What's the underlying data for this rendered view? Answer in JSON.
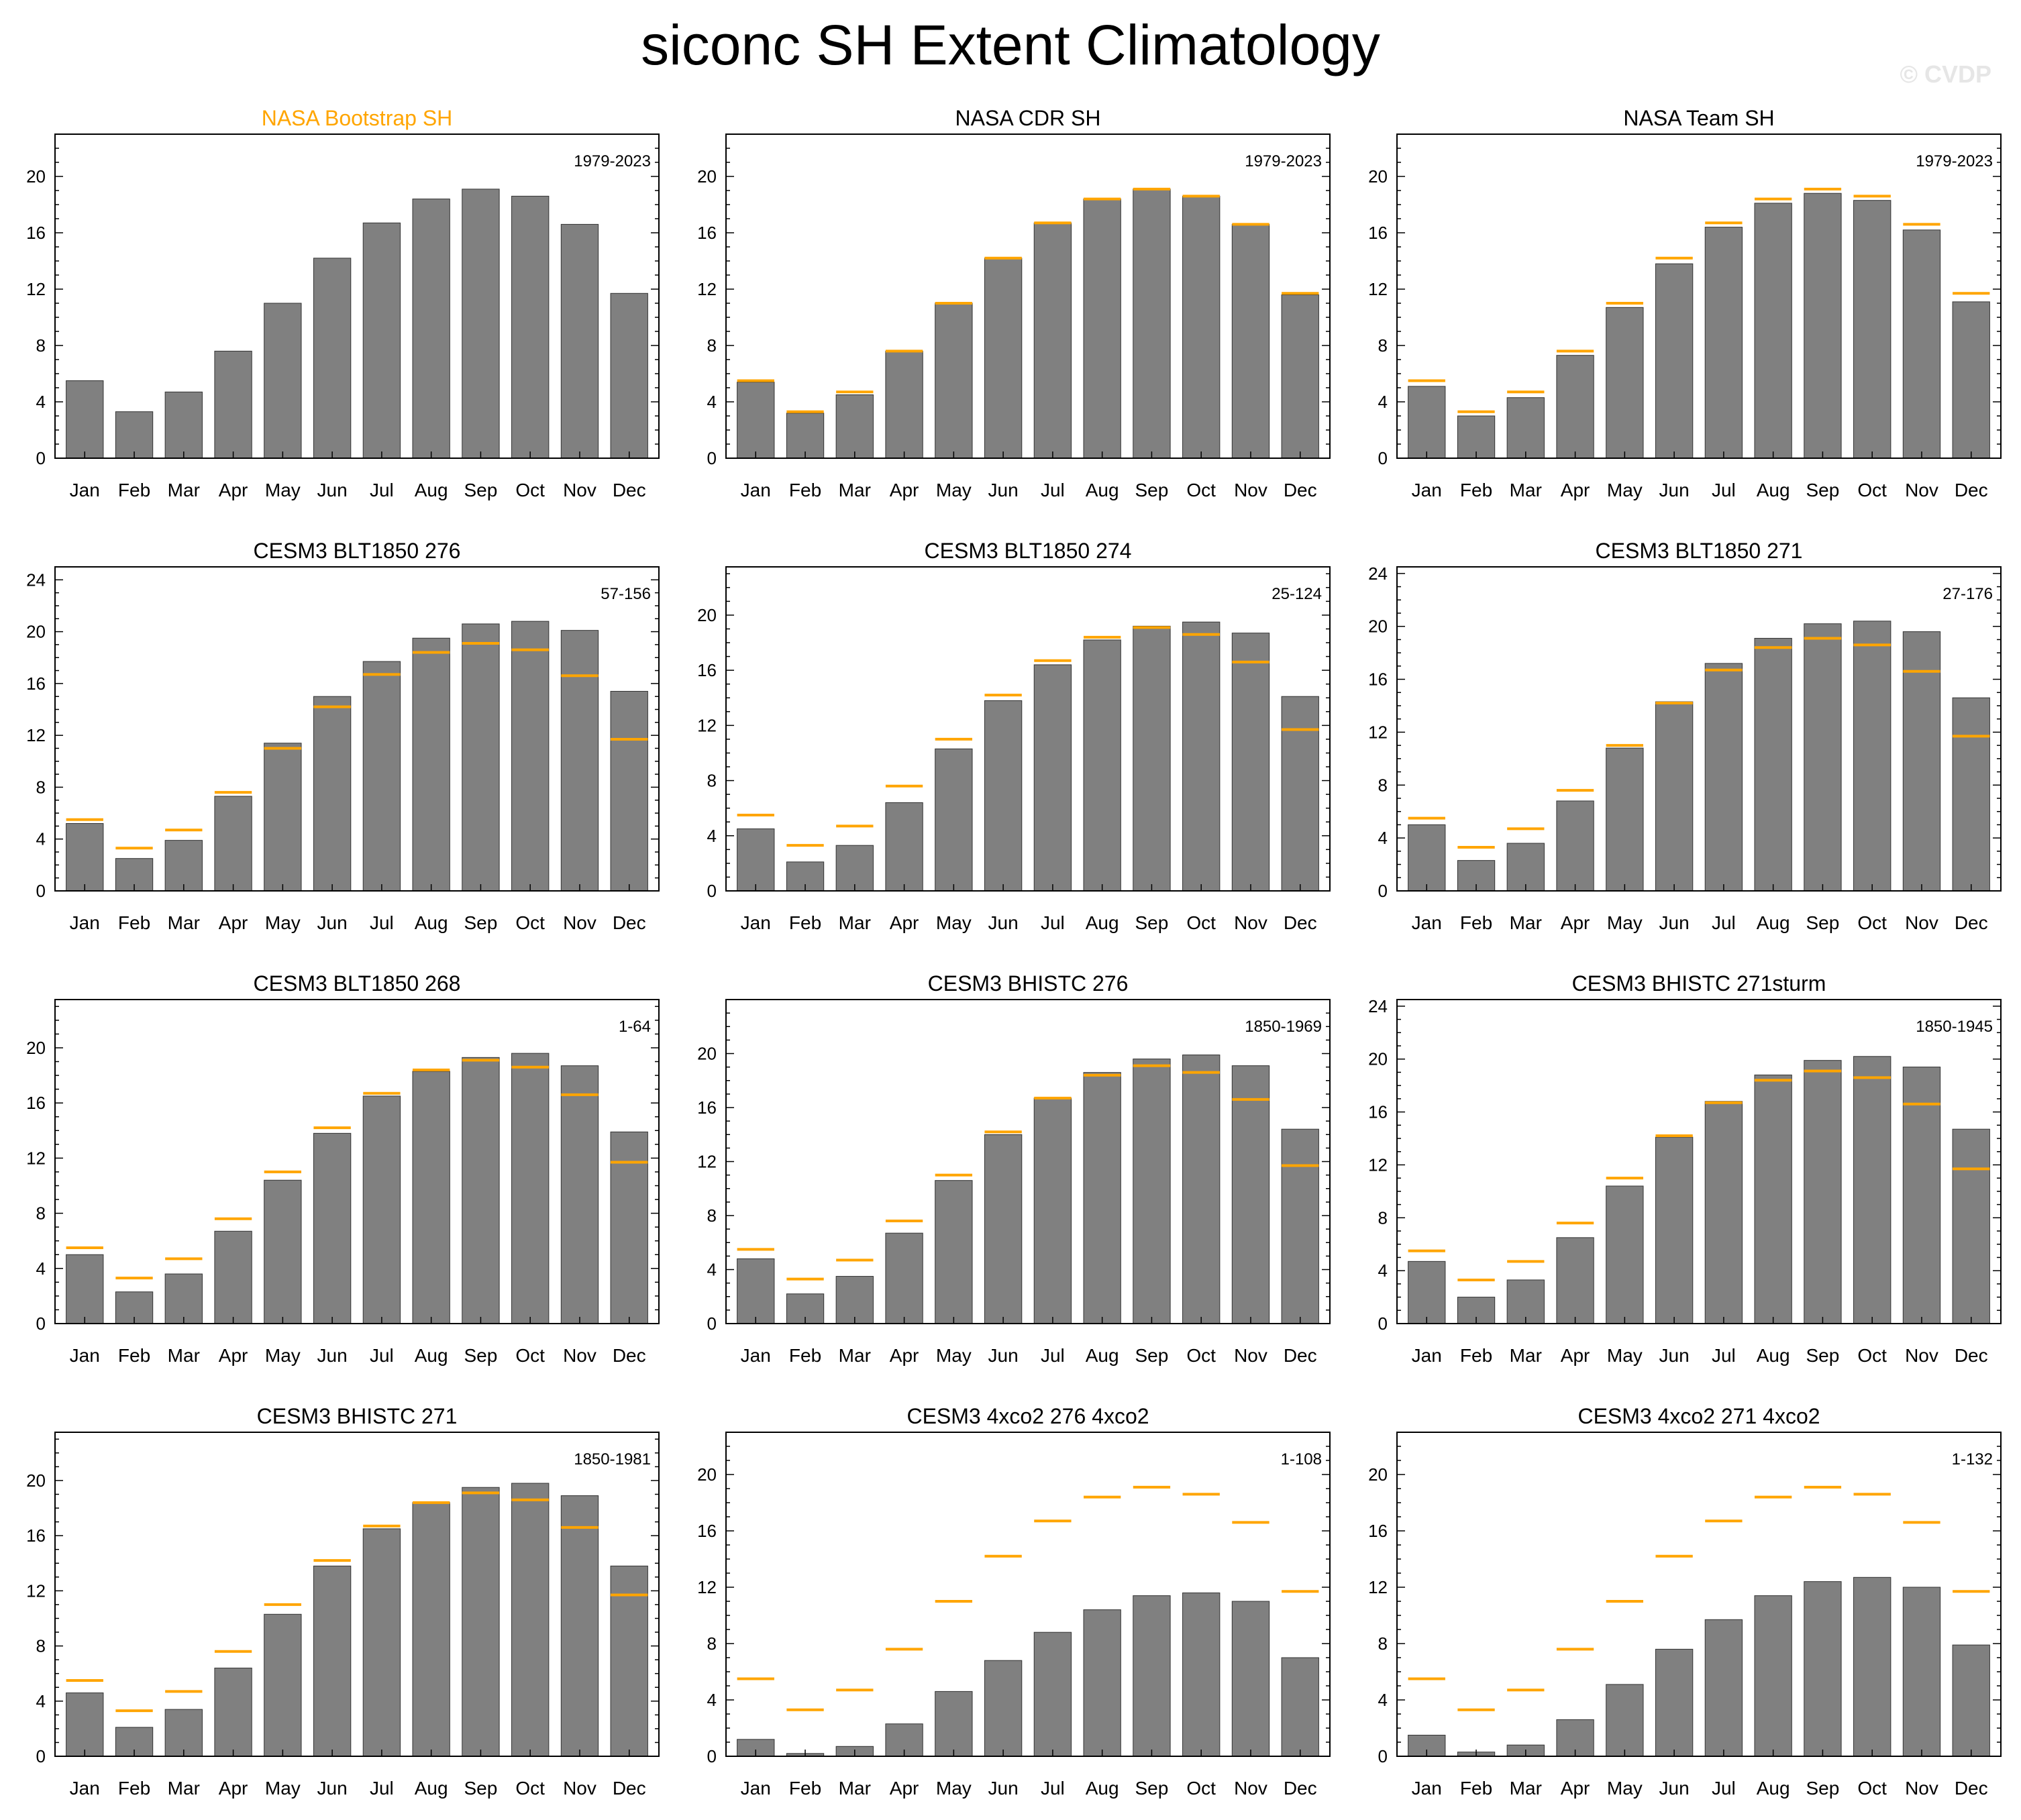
{
  "title": "siconc SH Extent Climatology",
  "watermark": "© CVDP",
  "colors": {
    "bar": "#808080",
    "reference": "#ffa500",
    "axis": "#000000",
    "highlight_title": "#ffa500"
  },
  "chart_data": [
    {
      "type": "bar",
      "title": "NASA Bootstrap SH",
      "title_highlight": true,
      "period": "1979-2023",
      "categories": [
        "Jan",
        "Feb",
        "Mar",
        "Apr",
        "May",
        "Jun",
        "Jul",
        "Aug",
        "Sep",
        "Oct",
        "Nov",
        "Dec"
      ],
      "values": [
        5.5,
        3.3,
        4.7,
        7.6,
        11.0,
        14.2,
        16.7,
        18.4,
        19.1,
        18.6,
        16.6,
        11.7
      ],
      "reference": null,
      "ylim": [
        0,
        23
      ],
      "yticks": [
        0,
        4,
        8,
        12,
        16,
        20
      ]
    },
    {
      "type": "bar",
      "title": "NASA CDR SH",
      "title_highlight": false,
      "period": "1979-2023",
      "categories": [
        "Jan",
        "Feb",
        "Mar",
        "Apr",
        "May",
        "Jun",
        "Jul",
        "Aug",
        "Sep",
        "Oct",
        "Nov",
        "Dec"
      ],
      "values": [
        5.4,
        3.2,
        4.5,
        7.6,
        11.0,
        14.2,
        16.7,
        18.4,
        19.1,
        18.6,
        16.6,
        11.6
      ],
      "reference": [
        5.5,
        3.3,
        4.7,
        7.6,
        11.0,
        14.2,
        16.7,
        18.4,
        19.1,
        18.6,
        16.6,
        11.7
      ],
      "ylim": [
        0,
        23
      ],
      "yticks": [
        0,
        4,
        8,
        12,
        16,
        20
      ]
    },
    {
      "type": "bar",
      "title": "NASA Team SH",
      "title_highlight": false,
      "period": "1979-2023",
      "categories": [
        "Jan",
        "Feb",
        "Mar",
        "Apr",
        "May",
        "Jun",
        "Jul",
        "Aug",
        "Sep",
        "Oct",
        "Nov",
        "Dec"
      ],
      "values": [
        5.1,
        3.0,
        4.3,
        7.3,
        10.7,
        13.8,
        16.4,
        18.1,
        18.8,
        18.3,
        16.2,
        11.1
      ],
      "reference": [
        5.5,
        3.3,
        4.7,
        7.6,
        11.0,
        14.2,
        16.7,
        18.4,
        19.1,
        18.6,
        16.6,
        11.7
      ],
      "ylim": [
        0,
        23
      ],
      "yticks": [
        0,
        4,
        8,
        12,
        16,
        20
      ]
    },
    {
      "type": "bar",
      "title": "CESM3 BLT1850 276",
      "title_highlight": false,
      "period": "57-156",
      "categories": [
        "Jan",
        "Feb",
        "Mar",
        "Apr",
        "May",
        "Jun",
        "Jul",
        "Aug",
        "Sep",
        "Oct",
        "Nov",
        "Dec"
      ],
      "values": [
        5.2,
        2.5,
        3.9,
        7.3,
        11.4,
        15.0,
        17.7,
        19.5,
        20.6,
        20.8,
        20.1,
        15.4
      ],
      "reference": [
        5.5,
        3.3,
        4.7,
        7.6,
        11.0,
        14.2,
        16.7,
        18.4,
        19.1,
        18.6,
        16.6,
        11.7
      ],
      "ylim": [
        0,
        25
      ],
      "yticks": [
        0,
        4,
        8,
        12,
        16,
        20,
        24
      ]
    },
    {
      "type": "bar",
      "title": "CESM3 BLT1850 274",
      "title_highlight": false,
      "period": "25-124",
      "categories": [
        "Jan",
        "Feb",
        "Mar",
        "Apr",
        "May",
        "Jun",
        "Jul",
        "Aug",
        "Sep",
        "Oct",
        "Nov",
        "Dec"
      ],
      "values": [
        4.5,
        2.1,
        3.3,
        6.4,
        10.3,
        13.8,
        16.4,
        18.2,
        19.2,
        19.5,
        18.7,
        14.1
      ],
      "reference": [
        5.5,
        3.3,
        4.7,
        7.6,
        11.0,
        14.2,
        16.7,
        18.4,
        19.1,
        18.6,
        16.6,
        11.7
      ],
      "ylim": [
        0,
        23.5
      ],
      "yticks": [
        0,
        4,
        8,
        12,
        16,
        20
      ]
    },
    {
      "type": "bar",
      "title": "CESM3 BLT1850 271",
      "title_highlight": false,
      "period": "27-176",
      "categories": [
        "Jan",
        "Feb",
        "Mar",
        "Apr",
        "May",
        "Jun",
        "Jul",
        "Aug",
        "Sep",
        "Oct",
        "Nov",
        "Dec"
      ],
      "values": [
        5.0,
        2.3,
        3.6,
        6.8,
        10.8,
        14.3,
        17.2,
        19.1,
        20.2,
        20.4,
        19.6,
        14.6
      ],
      "reference": [
        5.5,
        3.3,
        4.7,
        7.6,
        11.0,
        14.2,
        16.7,
        18.4,
        19.1,
        18.6,
        16.6,
        11.7
      ],
      "ylim": [
        0,
        24.5
      ],
      "yticks": [
        0,
        4,
        8,
        12,
        16,
        20,
        24
      ]
    },
    {
      "type": "bar",
      "title": "CESM3 BLT1850 268",
      "title_highlight": false,
      "period": "1-64",
      "categories": [
        "Jan",
        "Feb",
        "Mar",
        "Apr",
        "May",
        "Jun",
        "Jul",
        "Aug",
        "Sep",
        "Oct",
        "Nov",
        "Dec"
      ],
      "values": [
        5.0,
        2.3,
        3.6,
        6.7,
        10.4,
        13.8,
        16.5,
        18.3,
        19.3,
        19.6,
        18.7,
        13.9
      ],
      "reference": [
        5.5,
        3.3,
        4.7,
        7.6,
        11.0,
        14.2,
        16.7,
        18.4,
        19.1,
        18.6,
        16.6,
        11.7
      ],
      "ylim": [
        0,
        23.5
      ],
      "yticks": [
        0,
        4,
        8,
        12,
        16,
        20
      ]
    },
    {
      "type": "bar",
      "title": "CESM3 BHISTC 276",
      "title_highlight": false,
      "period": "1850-1969",
      "categories": [
        "Jan",
        "Feb",
        "Mar",
        "Apr",
        "May",
        "Jun",
        "Jul",
        "Aug",
        "Sep",
        "Oct",
        "Nov",
        "Dec"
      ],
      "values": [
        4.8,
        2.2,
        3.5,
        6.7,
        10.6,
        14.0,
        16.7,
        18.6,
        19.6,
        19.9,
        19.1,
        14.4
      ],
      "reference": [
        5.5,
        3.3,
        4.7,
        7.6,
        11.0,
        14.2,
        16.7,
        18.4,
        19.1,
        18.6,
        16.6,
        11.7
      ],
      "ylim": [
        0,
        24
      ],
      "yticks": [
        0,
        4,
        8,
        12,
        16,
        20
      ]
    },
    {
      "type": "bar",
      "title": "CESM3 BHISTC 271sturm",
      "title_highlight": false,
      "period": "1850-1945",
      "categories": [
        "Jan",
        "Feb",
        "Mar",
        "Apr",
        "May",
        "Jun",
        "Jul",
        "Aug",
        "Sep",
        "Oct",
        "Nov",
        "Dec"
      ],
      "values": [
        4.7,
        2.0,
        3.3,
        6.5,
        10.4,
        14.1,
        16.8,
        18.8,
        19.9,
        20.2,
        19.4,
        14.7
      ],
      "reference": [
        5.5,
        3.3,
        4.7,
        7.6,
        11.0,
        14.2,
        16.7,
        18.4,
        19.1,
        18.6,
        16.6,
        11.7
      ],
      "ylim": [
        0,
        24.5
      ],
      "yticks": [
        0,
        4,
        8,
        12,
        16,
        20,
        24
      ]
    },
    {
      "type": "bar",
      "title": "CESM3 BHISTC 271",
      "title_highlight": false,
      "period": "1850-1981",
      "categories": [
        "Jan",
        "Feb",
        "Mar",
        "Apr",
        "May",
        "Jun",
        "Jul",
        "Aug",
        "Sep",
        "Oct",
        "Nov",
        "Dec"
      ],
      "values": [
        4.6,
        2.1,
        3.4,
        6.4,
        10.3,
        13.8,
        16.5,
        18.4,
        19.5,
        19.8,
        18.9,
        13.8
      ],
      "reference": [
        5.5,
        3.3,
        4.7,
        7.6,
        11.0,
        14.2,
        16.7,
        18.4,
        19.1,
        18.6,
        16.6,
        11.7
      ],
      "ylim": [
        0,
        23.5
      ],
      "yticks": [
        0,
        4,
        8,
        12,
        16,
        20
      ]
    },
    {
      "type": "bar",
      "title": "CESM3 4xco2 276 4xco2",
      "title_highlight": false,
      "period": "1-108",
      "categories": [
        "Jan",
        "Feb",
        "Mar",
        "Apr",
        "May",
        "Jun",
        "Jul",
        "Aug",
        "Sep",
        "Oct",
        "Nov",
        "Dec"
      ],
      "values": [
        1.2,
        0.2,
        0.7,
        2.3,
        4.6,
        6.8,
        8.8,
        10.4,
        11.4,
        11.6,
        11.0,
        7.0
      ],
      "reference": [
        5.5,
        3.3,
        4.7,
        7.6,
        11.0,
        14.2,
        16.7,
        18.4,
        19.1,
        18.6,
        16.6,
        11.7
      ],
      "ylim": [
        0,
        23
      ],
      "yticks": [
        0,
        4,
        8,
        12,
        16,
        20
      ]
    },
    {
      "type": "bar",
      "title": "CESM3 4xco2 271 4xco2",
      "title_highlight": false,
      "period": "1-132",
      "categories": [
        "Jan",
        "Feb",
        "Mar",
        "Apr",
        "May",
        "Jun",
        "Jul",
        "Aug",
        "Sep",
        "Oct",
        "Nov",
        "Dec"
      ],
      "values": [
        1.5,
        0.3,
        0.8,
        2.6,
        5.1,
        7.6,
        9.7,
        11.4,
        12.4,
        12.7,
        12.0,
        7.9
      ],
      "reference": [
        5.5,
        3.3,
        4.7,
        7.6,
        11.0,
        14.2,
        16.7,
        18.4,
        19.1,
        18.6,
        16.6,
        11.7
      ],
      "ylim": [
        0,
        23
      ],
      "yticks": [
        0,
        4,
        8,
        12,
        16,
        20
      ]
    }
  ]
}
